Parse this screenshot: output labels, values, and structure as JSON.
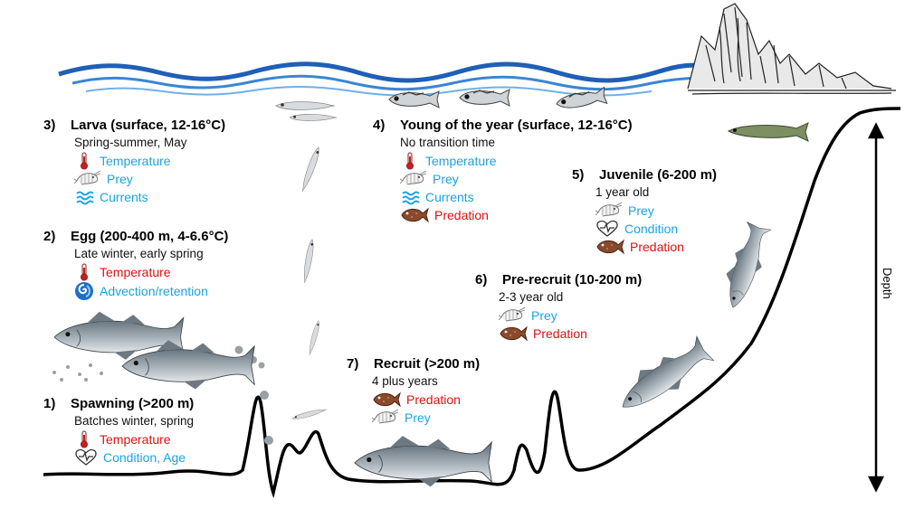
{
  "colors": {
    "driver_blue": "#1aa3e0",
    "driver_red": "#e01010",
    "wave": "#1f5fb8"
  },
  "axis": {
    "depth_label": "Depth"
  },
  "stages": [
    {
      "id": "larva",
      "number": "3)",
      "title": "Larva (surface, 12-16°C)",
      "sub": "Spring-summer, May",
      "factors": [
        {
          "icon": "thermometer-icon",
          "label": "Temperature",
          "color": "blue"
        },
        {
          "icon": "shrimp-icon",
          "label": "Prey",
          "color": "blue"
        },
        {
          "icon": "waves-icon",
          "label": "Currents",
          "color": "blue"
        }
      ]
    },
    {
      "id": "egg",
      "number": "2)",
      "title": "Egg (200-400 m, 4-6.6°C)",
      "sub": "Late winter, early spring",
      "factors": [
        {
          "icon": "thermometer-icon",
          "label": "Temperature",
          "color": "red"
        },
        {
          "icon": "swirl-icon",
          "label": "Advection/retention",
          "color": "blue"
        }
      ]
    },
    {
      "id": "spawning",
      "number": "1)",
      "title": "Spawning (>200 m)",
      "sub": "Batches winter, spring",
      "factors": [
        {
          "icon": "thermometer-icon",
          "label": "Temperature",
          "color": "red"
        },
        {
          "icon": "heart-pulse-icon",
          "label": "Condition, Age",
          "color": "blue"
        }
      ]
    },
    {
      "id": "young-of-year",
      "number": "4)",
      "title": "Young of the year (surface, 12-16°C)",
      "sub": "No transition time",
      "factors": [
        {
          "icon": "thermometer-icon",
          "label": "Temperature",
          "color": "blue"
        },
        {
          "icon": "shrimp-icon",
          "label": "Prey",
          "color": "blue"
        },
        {
          "icon": "waves-icon",
          "label": "Currents",
          "color": "blue"
        },
        {
          "icon": "flatfish-icon",
          "label": "Predation",
          "color": "red"
        }
      ]
    },
    {
      "id": "juvenile",
      "number": "5)",
      "title": "Juvenile (6-200 m)",
      "sub": "1 year old",
      "factors": [
        {
          "icon": "shrimp-icon",
          "label": "Prey",
          "color": "blue"
        },
        {
          "icon": "heart-pulse-icon",
          "label": "Condition",
          "color": "blue"
        },
        {
          "icon": "flatfish-icon",
          "label": "Predation",
          "color": "red"
        }
      ]
    },
    {
      "id": "pre-recruit",
      "number": "6)",
      "title": "Pre-recruit (10-200 m)",
      "sub": "2-3 year old",
      "factors": [
        {
          "icon": "shrimp-icon",
          "label": "Prey",
          "color": "blue"
        },
        {
          "icon": "flatfish-icon",
          "label": "Predation",
          "color": "red"
        }
      ]
    },
    {
      "id": "recruit",
      "number": "7)",
      "title": "Recruit (>200 m)",
      "sub": "4 plus years",
      "factors": [
        {
          "icon": "flatfish-icon",
          "label": "Predation",
          "color": "red"
        },
        {
          "icon": "shrimp-icon",
          "label": "Prey",
          "color": "blue"
        }
      ]
    }
  ]
}
